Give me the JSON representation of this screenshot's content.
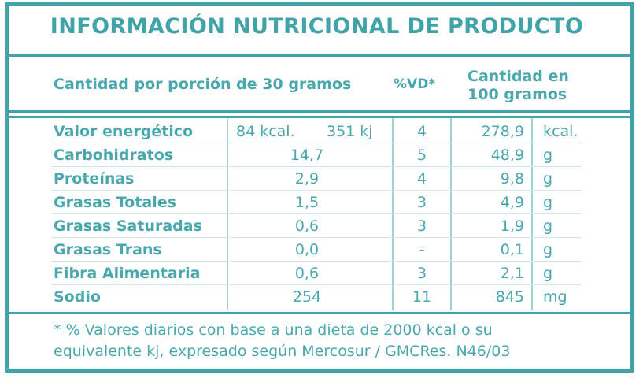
{
  "title": "INFORMACIÓN NUTRICIONAL DE PRODUCTO",
  "header": {
    "portion": "Cantidad por porción de 30 gramos",
    "vd": "%VD*",
    "per100_line1": "Cantidad en",
    "per100_line2": "100 gramos"
  },
  "rows": [
    {
      "label": "Valor energético",
      "portion_kcal": "84 kcal.",
      "portion_kj": "351 kj",
      "vd": "4",
      "per100": "278,9",
      "unit": "kcal."
    },
    {
      "label": "Carbohidratos",
      "portion": "14,7",
      "vd": "5",
      "per100": "48,9",
      "unit": "g"
    },
    {
      "label": "Proteínas",
      "portion": "2,9",
      "vd": "4",
      "per100": "9,8",
      "unit": "g"
    },
    {
      "label": "Grasas Totales",
      "portion": "1,5",
      "vd": "3",
      "per100": "4,9",
      "unit": "g"
    },
    {
      "label": "Grasas Saturadas",
      "portion": "0,6",
      "vd": "3",
      "per100": "1,9",
      "unit": "g"
    },
    {
      "label": "Grasas Trans",
      "portion": "0,0",
      "vd": "-",
      "per100": "0,1",
      "unit": "g"
    },
    {
      "label": "Fibra Alimentaria",
      "portion": "0,6",
      "vd": "3",
      "per100": "2,1",
      "unit": "g"
    },
    {
      "label": "Sodio",
      "portion": "254",
      "vd": "11",
      "per100": "845",
      "unit": "mg"
    }
  ],
  "footnote_line1": "* %  Valores diarios con base a una dieta de 2000 kcal o su",
  "footnote_line2": "equivalente kj, expresado según Mercosur / GMCRes. N46/03",
  "colors": {
    "accent": "#3fa3a7",
    "text": "#4aa8ad"
  }
}
